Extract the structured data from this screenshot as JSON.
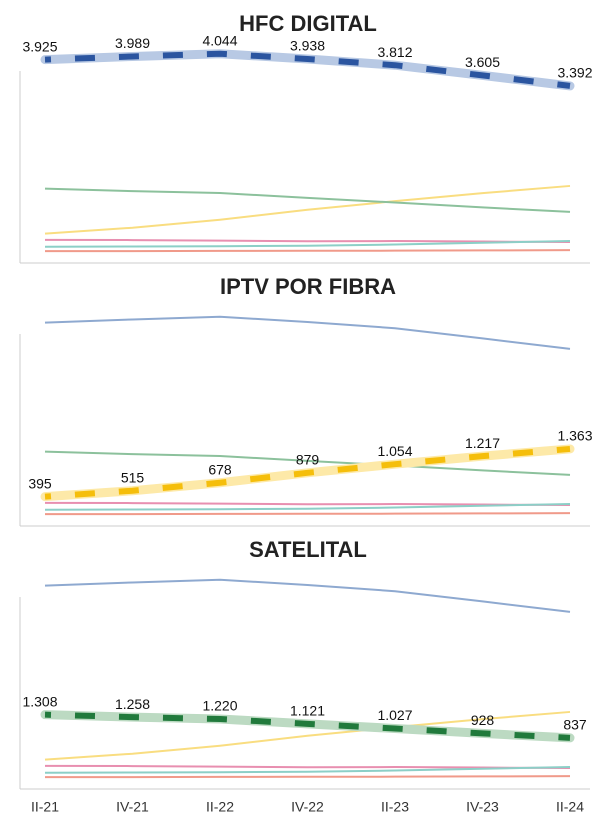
{
  "chart_data": {
    "type": "line",
    "categories": [
      "II-21",
      "IV-21",
      "II-22",
      "IV-22",
      "II-23",
      "IV-23",
      "II-24"
    ],
    "ylim": [
      -200,
      4100
    ],
    "series": [
      {
        "name": "HFC DIGITAL",
        "color": "#8ea9d0",
        "highlight_color": "#2b55a0",
        "band_color": "#b8c9e4",
        "values": [
          3925,
          3989,
          4044,
          3938,
          3812,
          3605,
          3392
        ],
        "value_labels": [
          "3.925",
          "3.989",
          "4.044",
          "3.938",
          "3.812",
          "3.605",
          "3.392"
        ]
      },
      {
        "name": "IPTV POR FIBRA",
        "color": "#f9dd80",
        "highlight_color": "#f5be0b",
        "band_color": "#fde9a8",
        "values": [
          395,
          515,
          678,
          879,
          1054,
          1217,
          1363
        ],
        "value_labels": [
          "395",
          "515",
          "678",
          "879",
          "1.054",
          "1.217",
          "1.363"
        ]
      },
      {
        "name": "SATELITAL",
        "color": "#8cc19c",
        "highlight_color": "#217a3c",
        "band_color": "#bcdac2",
        "values": [
          1308,
          1258,
          1220,
          1121,
          1027,
          928,
          837
        ],
        "value_labels": [
          "1.308",
          "1.258",
          "1.220",
          "1.121",
          "1.027",
          "928",
          "837"
        ]
      },
      {
        "color": "#e88fb0",
        "values": [
          270,
          265,
          255,
          240,
          245,
          235,
          225
        ]
      },
      {
        "color": "#8ccfc7",
        "values": [
          130,
          135,
          140,
          150,
          175,
          210,
          245
        ]
      },
      {
        "color": "#f09a8a",
        "values": [
          40,
          42,
          45,
          48,
          50,
          55,
          60
        ]
      }
    ]
  }
}
